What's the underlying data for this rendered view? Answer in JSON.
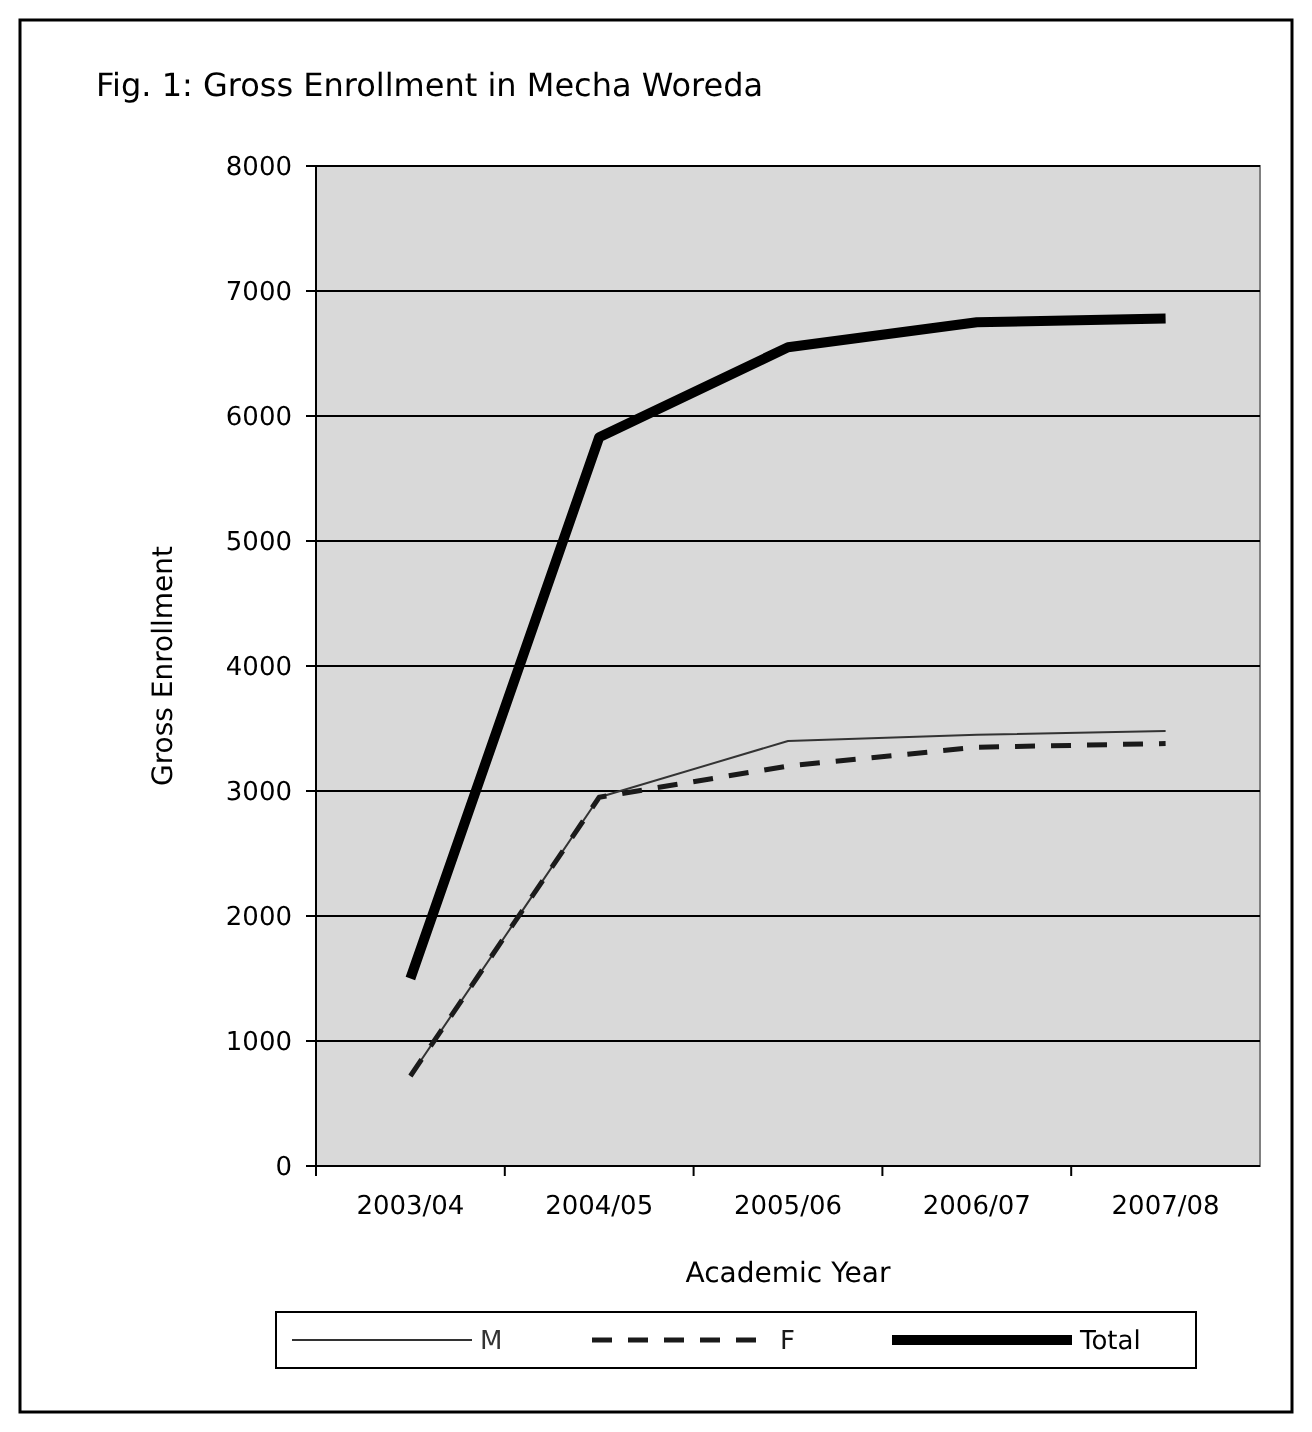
{
  "chart_data": {
    "type": "line",
    "title": "Fig. 1: Gross Enrollment in Mecha Woreda",
    "xlabel": "Academic Year",
    "ylabel": "Gross Enrollment",
    "categories": [
      "2003/04",
      "2004/05",
      "2005/06",
      "2006/07",
      "2007/08"
    ],
    "series": [
      {
        "name": "M",
        "color": "#333333",
        "line_style": "solid",
        "values": [
          720,
          2950,
          3400,
          3450,
          3480
        ]
      },
      {
        "name": "F",
        "color": "#1a1a1a",
        "line_style": "dashed",
        "values": [
          720,
          2950,
          3200,
          3350,
          3380
        ]
      },
      {
        "name": "Total",
        "color": "#000000",
        "line_style": "solid",
        "values": [
          1500,
          5830,
          6550,
          6750,
          6780
        ]
      }
    ],
    "ylim": [
      0,
      8000
    ],
    "yticks": [
      0,
      1000,
      2000,
      3000,
      4000,
      5000,
      6000,
      7000,
      8000
    ],
    "grid": "y",
    "legend": "bottom",
    "marker": "none"
  }
}
